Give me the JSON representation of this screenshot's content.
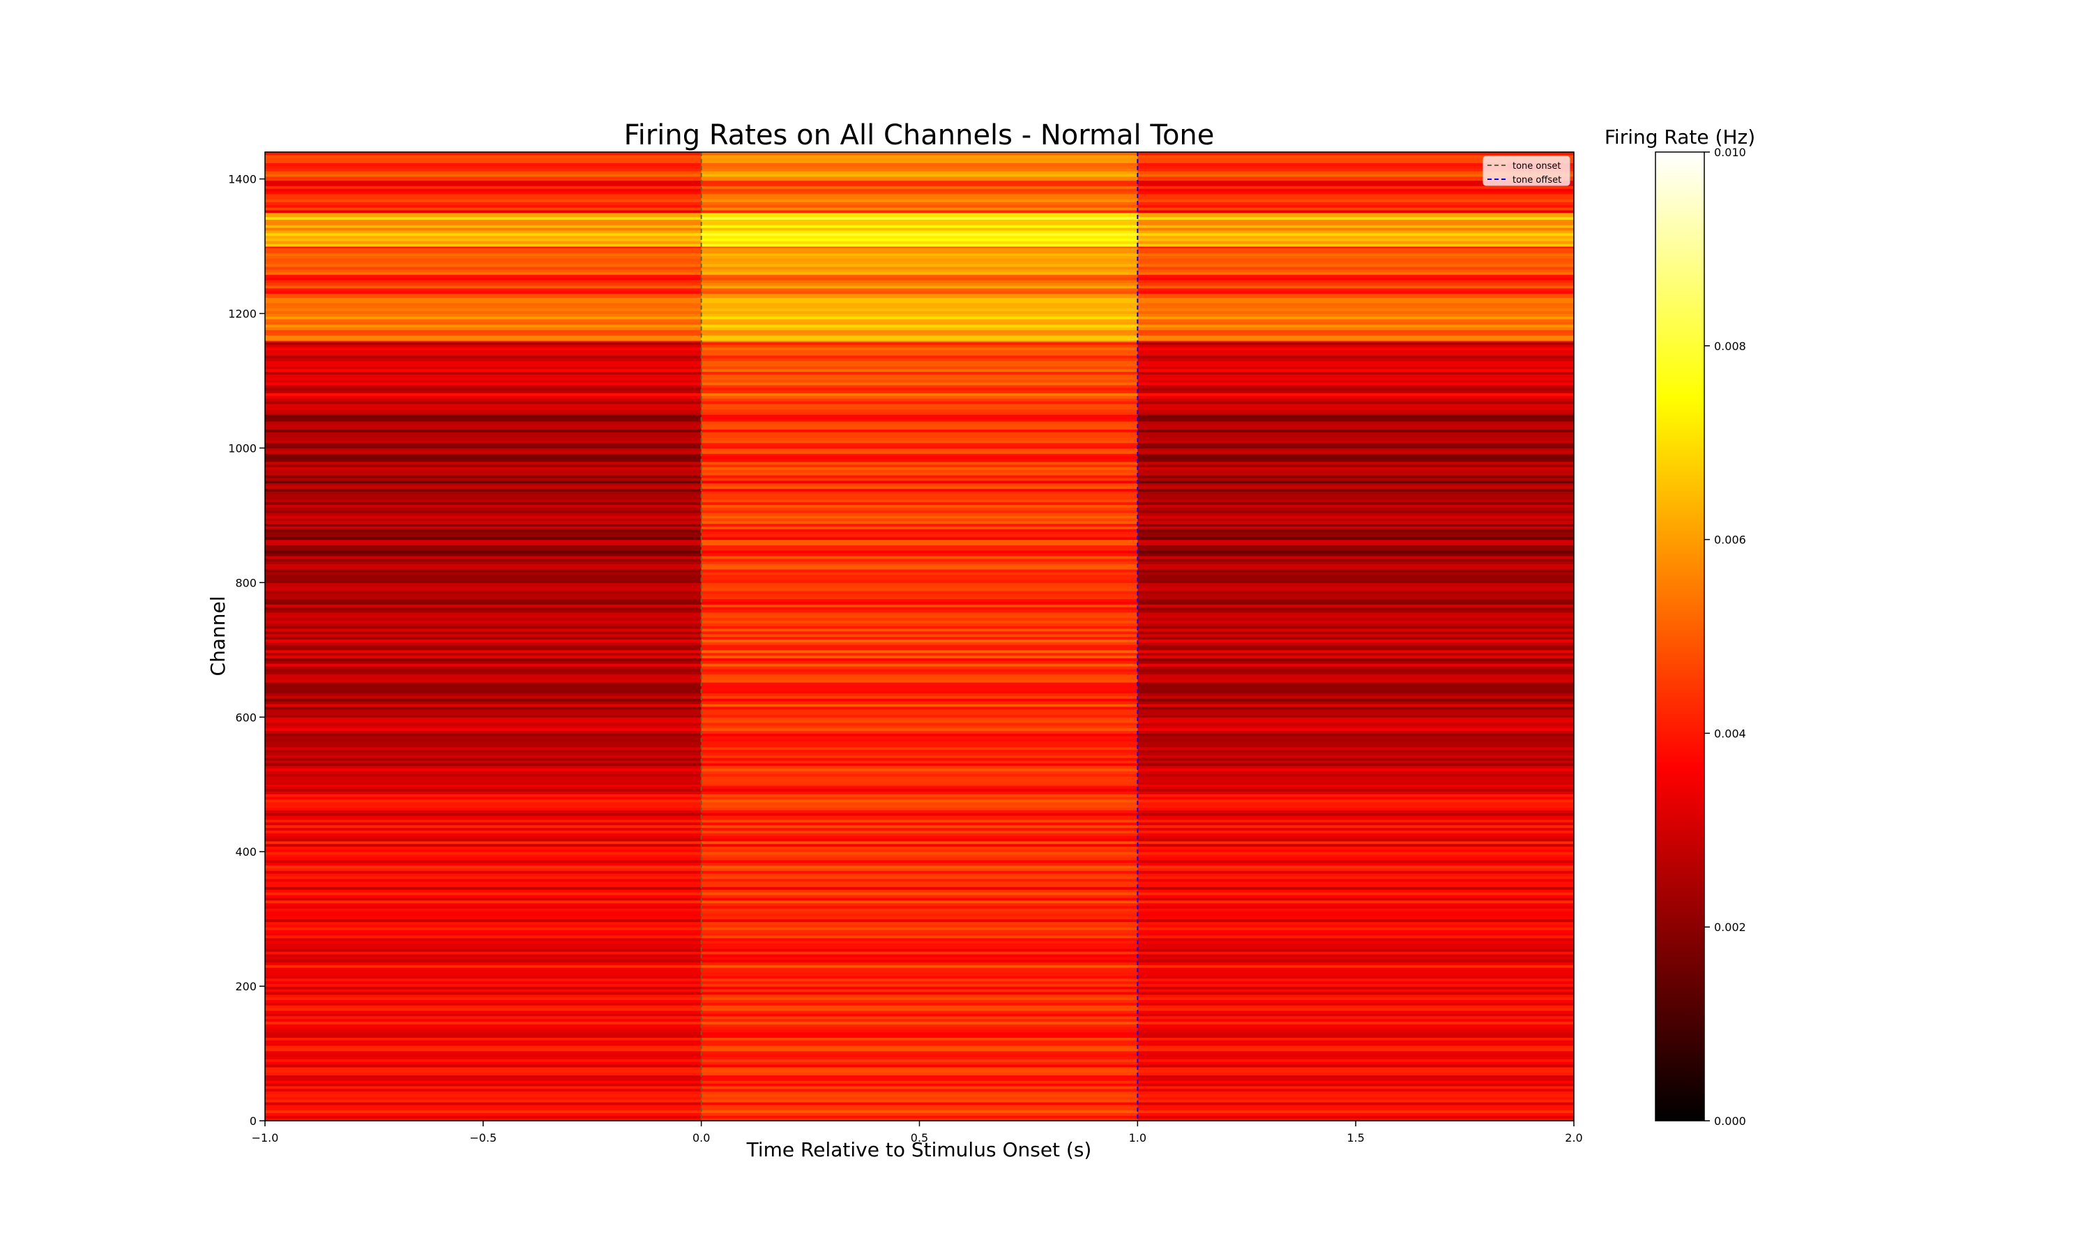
{
  "chart_data": {
    "type": "heatmap",
    "title": "Firing Rates on All Channels - Normal Tone",
    "xlabel": "Time Relative to Stimulus Onset (s)",
    "ylabel": "Channel",
    "xlim": [
      -1.0,
      2.0
    ],
    "ylim": [
      0,
      1440
    ],
    "xticks": [
      -1.0,
      -0.5,
      0.0,
      0.5,
      1.0,
      1.5,
      2.0
    ],
    "xtick_labels": [
      "−1.0",
      "−0.5",
      "0.0",
      "0.5",
      "1.0",
      "1.5",
      "2.0"
    ],
    "yticks": [
      0,
      200,
      400,
      600,
      800,
      1000,
      1200,
      1400
    ],
    "ytick_labels": [
      "0",
      "200",
      "400",
      "600",
      "800",
      "1000",
      "1200",
      "1400"
    ],
    "colormap": "hot",
    "colorbar": {
      "label": "Firing Rate (Hz)",
      "range": [
        0.0,
        0.01
      ],
      "ticks": [
        0.0,
        0.002,
        0.004,
        0.006,
        0.008,
        0.01
      ],
      "tick_labels": [
        "0.000",
        "0.002",
        "0.004",
        "0.006",
        "0.008",
        "0.010"
      ]
    },
    "vlines": [
      {
        "name": "tone onset",
        "x": 0.0,
        "color": "#556b2f",
        "style": "dashed"
      },
      {
        "name": "tone offset",
        "x": 1.0,
        "color": "#0000ff",
        "style": "dashed"
      }
    ],
    "legend": {
      "placement": "top-right",
      "entries": [
        "tone onset",
        "tone offset"
      ]
    },
    "channel_bands": [
      {
        "channels": [
          0,
          450
        ],
        "pre_stimulus": 0.0036,
        "during_tone": 0.0042,
        "post_stimulus": 0.0036
      },
      {
        "channels": [
          450,
          500
        ],
        "pre_stimulus": 0.0035,
        "during_tone": 0.0042,
        "post_stimulus": 0.0035
      },
      {
        "channels": [
          500,
          600
        ],
        "pre_stimulus": 0.0028,
        "during_tone": 0.0042,
        "post_stimulus": 0.0028
      },
      {
        "channels": [
          600,
          800
        ],
        "pre_stimulus": 0.0027,
        "during_tone": 0.0044,
        "post_stimulus": 0.0027
      },
      {
        "channels": [
          800,
          1050
        ],
        "pre_stimulus": 0.0023,
        "during_tone": 0.0043,
        "post_stimulus": 0.0023
      },
      {
        "channels": [
          1050,
          1160
        ],
        "pre_stimulus": 0.0032,
        "during_tone": 0.0048,
        "post_stimulus": 0.0032
      },
      {
        "channels": [
          1160,
          1230
        ],
        "pre_stimulus": 0.0052,
        "during_tone": 0.0062,
        "post_stimulus": 0.0052
      },
      {
        "channels": [
          1230,
          1300
        ],
        "pre_stimulus": 0.0045,
        "during_tone": 0.0056,
        "post_stimulus": 0.0045
      },
      {
        "channels": [
          1300,
          1350
        ],
        "pre_stimulus": 0.0062,
        "during_tone": 0.0072,
        "post_stimulus": 0.0062
      },
      {
        "channels": [
          1350,
          1400
        ],
        "pre_stimulus": 0.004,
        "during_tone": 0.005,
        "post_stimulus": 0.004
      },
      {
        "channels": [
          1400,
          1440
        ],
        "pre_stimulus": 0.0046,
        "during_tone": 0.0058,
        "post_stimulus": 0.0046
      }
    ]
  }
}
